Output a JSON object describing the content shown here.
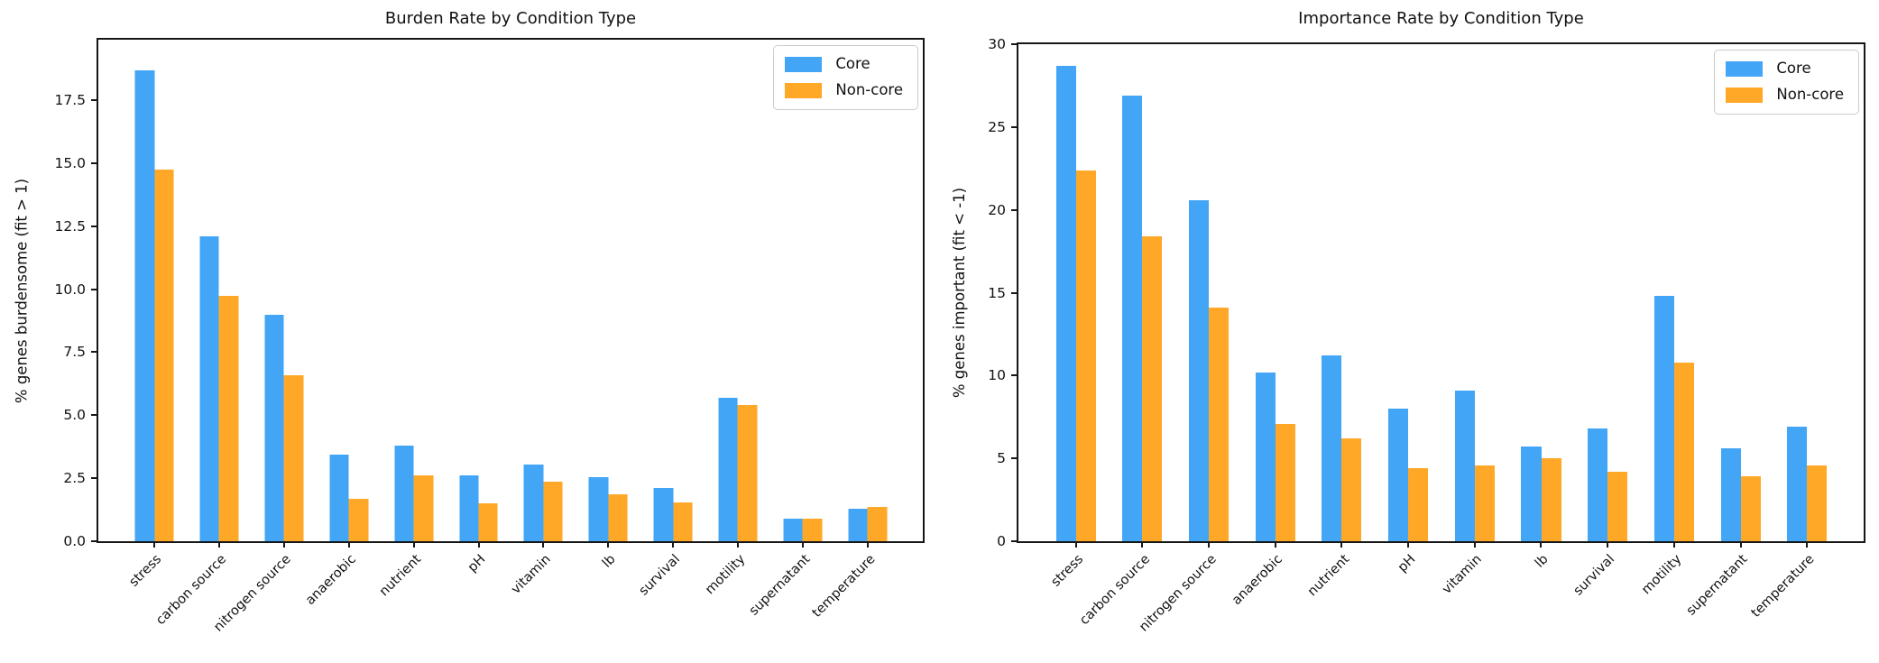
{
  "figure": {
    "background": "#ffffff"
  },
  "colors": {
    "core": "#42A5F5",
    "noncore": "#FFA726",
    "axis": "#161616"
  },
  "chart_data": [
    {
      "type": "bar",
      "title": "Burden Rate by Condition Type",
      "xlabel": "",
      "ylabel": "% genes burdensome (fit > 1)",
      "categories": [
        "stress",
        "carbon source",
        "nitrogen source",
        "anaerobic",
        "nutrient",
        "pH",
        "vitamin",
        "lb",
        "survival",
        "motility",
        "supernatant",
        "temperature"
      ],
      "series": [
        {
          "name": "Core",
          "color": "#42A5F5",
          "values": [
            18.7,
            12.1,
            9.0,
            3.45,
            3.8,
            2.6,
            3.05,
            2.55,
            2.1,
            5.7,
            0.9,
            1.3
          ]
        },
        {
          "name": "Non-core",
          "color": "#FFA726",
          "values": [
            14.75,
            9.75,
            6.6,
            1.7,
            2.6,
            1.5,
            2.35,
            1.85,
            1.55,
            5.4,
            0.9,
            1.35
          ]
        }
      ],
      "ylim": [
        0,
        19.9
      ],
      "ytick_values": [
        0,
        2.5,
        5,
        7.5,
        10,
        12.5,
        15,
        17.5
      ],
      "ytick_labels": [
        "0.0",
        "2.5",
        "5.0",
        "7.5",
        "10.0",
        "12.5",
        "15.0",
        "17.5"
      ],
      "xtick_rotation": 45,
      "grid": false,
      "legend_position": "upper right"
    },
    {
      "type": "bar",
      "title": "Importance Rate by Condition Type",
      "xlabel": "",
      "ylabel": "% genes important (fit < -1)",
      "categories": [
        "stress",
        "carbon source",
        "nitrogen source",
        "anaerobic",
        "nutrient",
        "pH",
        "vitamin",
        "lb",
        "survival",
        "motility",
        "supernatant",
        "temperature"
      ],
      "series": [
        {
          "name": "Core",
          "color": "#42A5F5",
          "values": [
            28.7,
            26.9,
            20.6,
            10.2,
            11.2,
            8.0,
            9.1,
            5.7,
            6.8,
            14.8,
            5.6,
            6.9
          ]
        },
        {
          "name": "Non-core",
          "color": "#FFA726",
          "values": [
            22.4,
            18.4,
            14.1,
            7.1,
            6.2,
            4.4,
            4.6,
            5.0,
            4.2,
            10.8,
            3.9,
            4.6
          ]
        }
      ],
      "ylim": [
        0,
        30
      ],
      "ytick_values": [
        0,
        5,
        10,
        15,
        20,
        25,
        30
      ],
      "ytick_labels": [
        "0",
        "5",
        "10",
        "15",
        "20",
        "25",
        "30"
      ],
      "xtick_rotation": 45,
      "grid": false,
      "legend_position": "upper right"
    }
  ]
}
